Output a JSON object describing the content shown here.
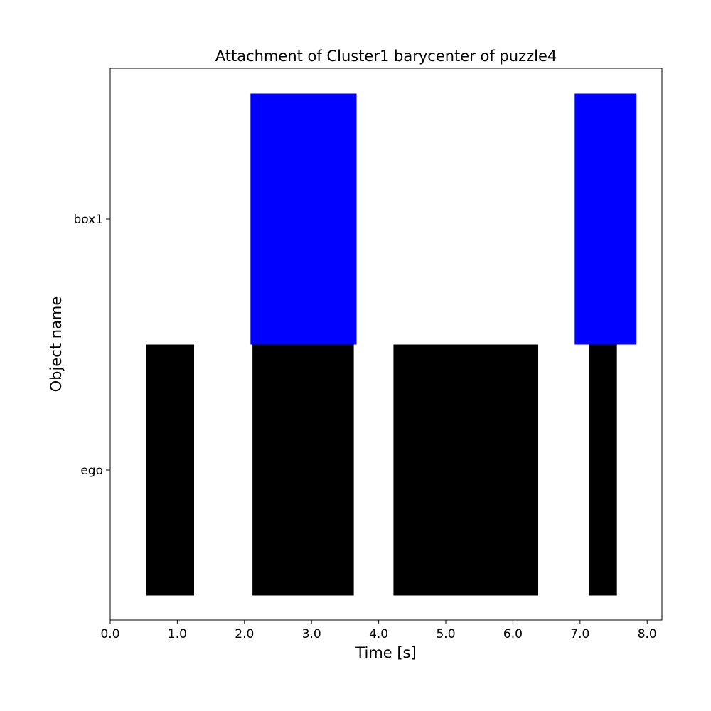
{
  "chart_data": {
    "type": "bar",
    "orientation": "horizontal-intervals",
    "title": "Attachment of Cluster1 barycenter of puzzle4",
    "xlabel": "Time [s]",
    "ylabel": "Object name",
    "xlim": [
      0.0,
      8.22
    ],
    "xticks": [
      "0.0",
      "1.0",
      "2.0",
      "3.0",
      "4.0",
      "5.0",
      "6.0",
      "7.0",
      "8.0"
    ],
    "categories": [
      "ego",
      "box1"
    ],
    "grid": false,
    "legend": "none",
    "series": [
      {
        "category": "ego",
        "color": "#000000",
        "intervals": [
          [
            0.54,
            1.25
          ],
          [
            2.12,
            3.63
          ],
          [
            4.22,
            6.37
          ],
          [
            7.13,
            7.55
          ]
        ]
      },
      {
        "category": "box1",
        "color": "#0000ff",
        "intervals": [
          [
            2.09,
            3.67
          ],
          [
            6.92,
            7.84
          ]
        ]
      }
    ]
  }
}
